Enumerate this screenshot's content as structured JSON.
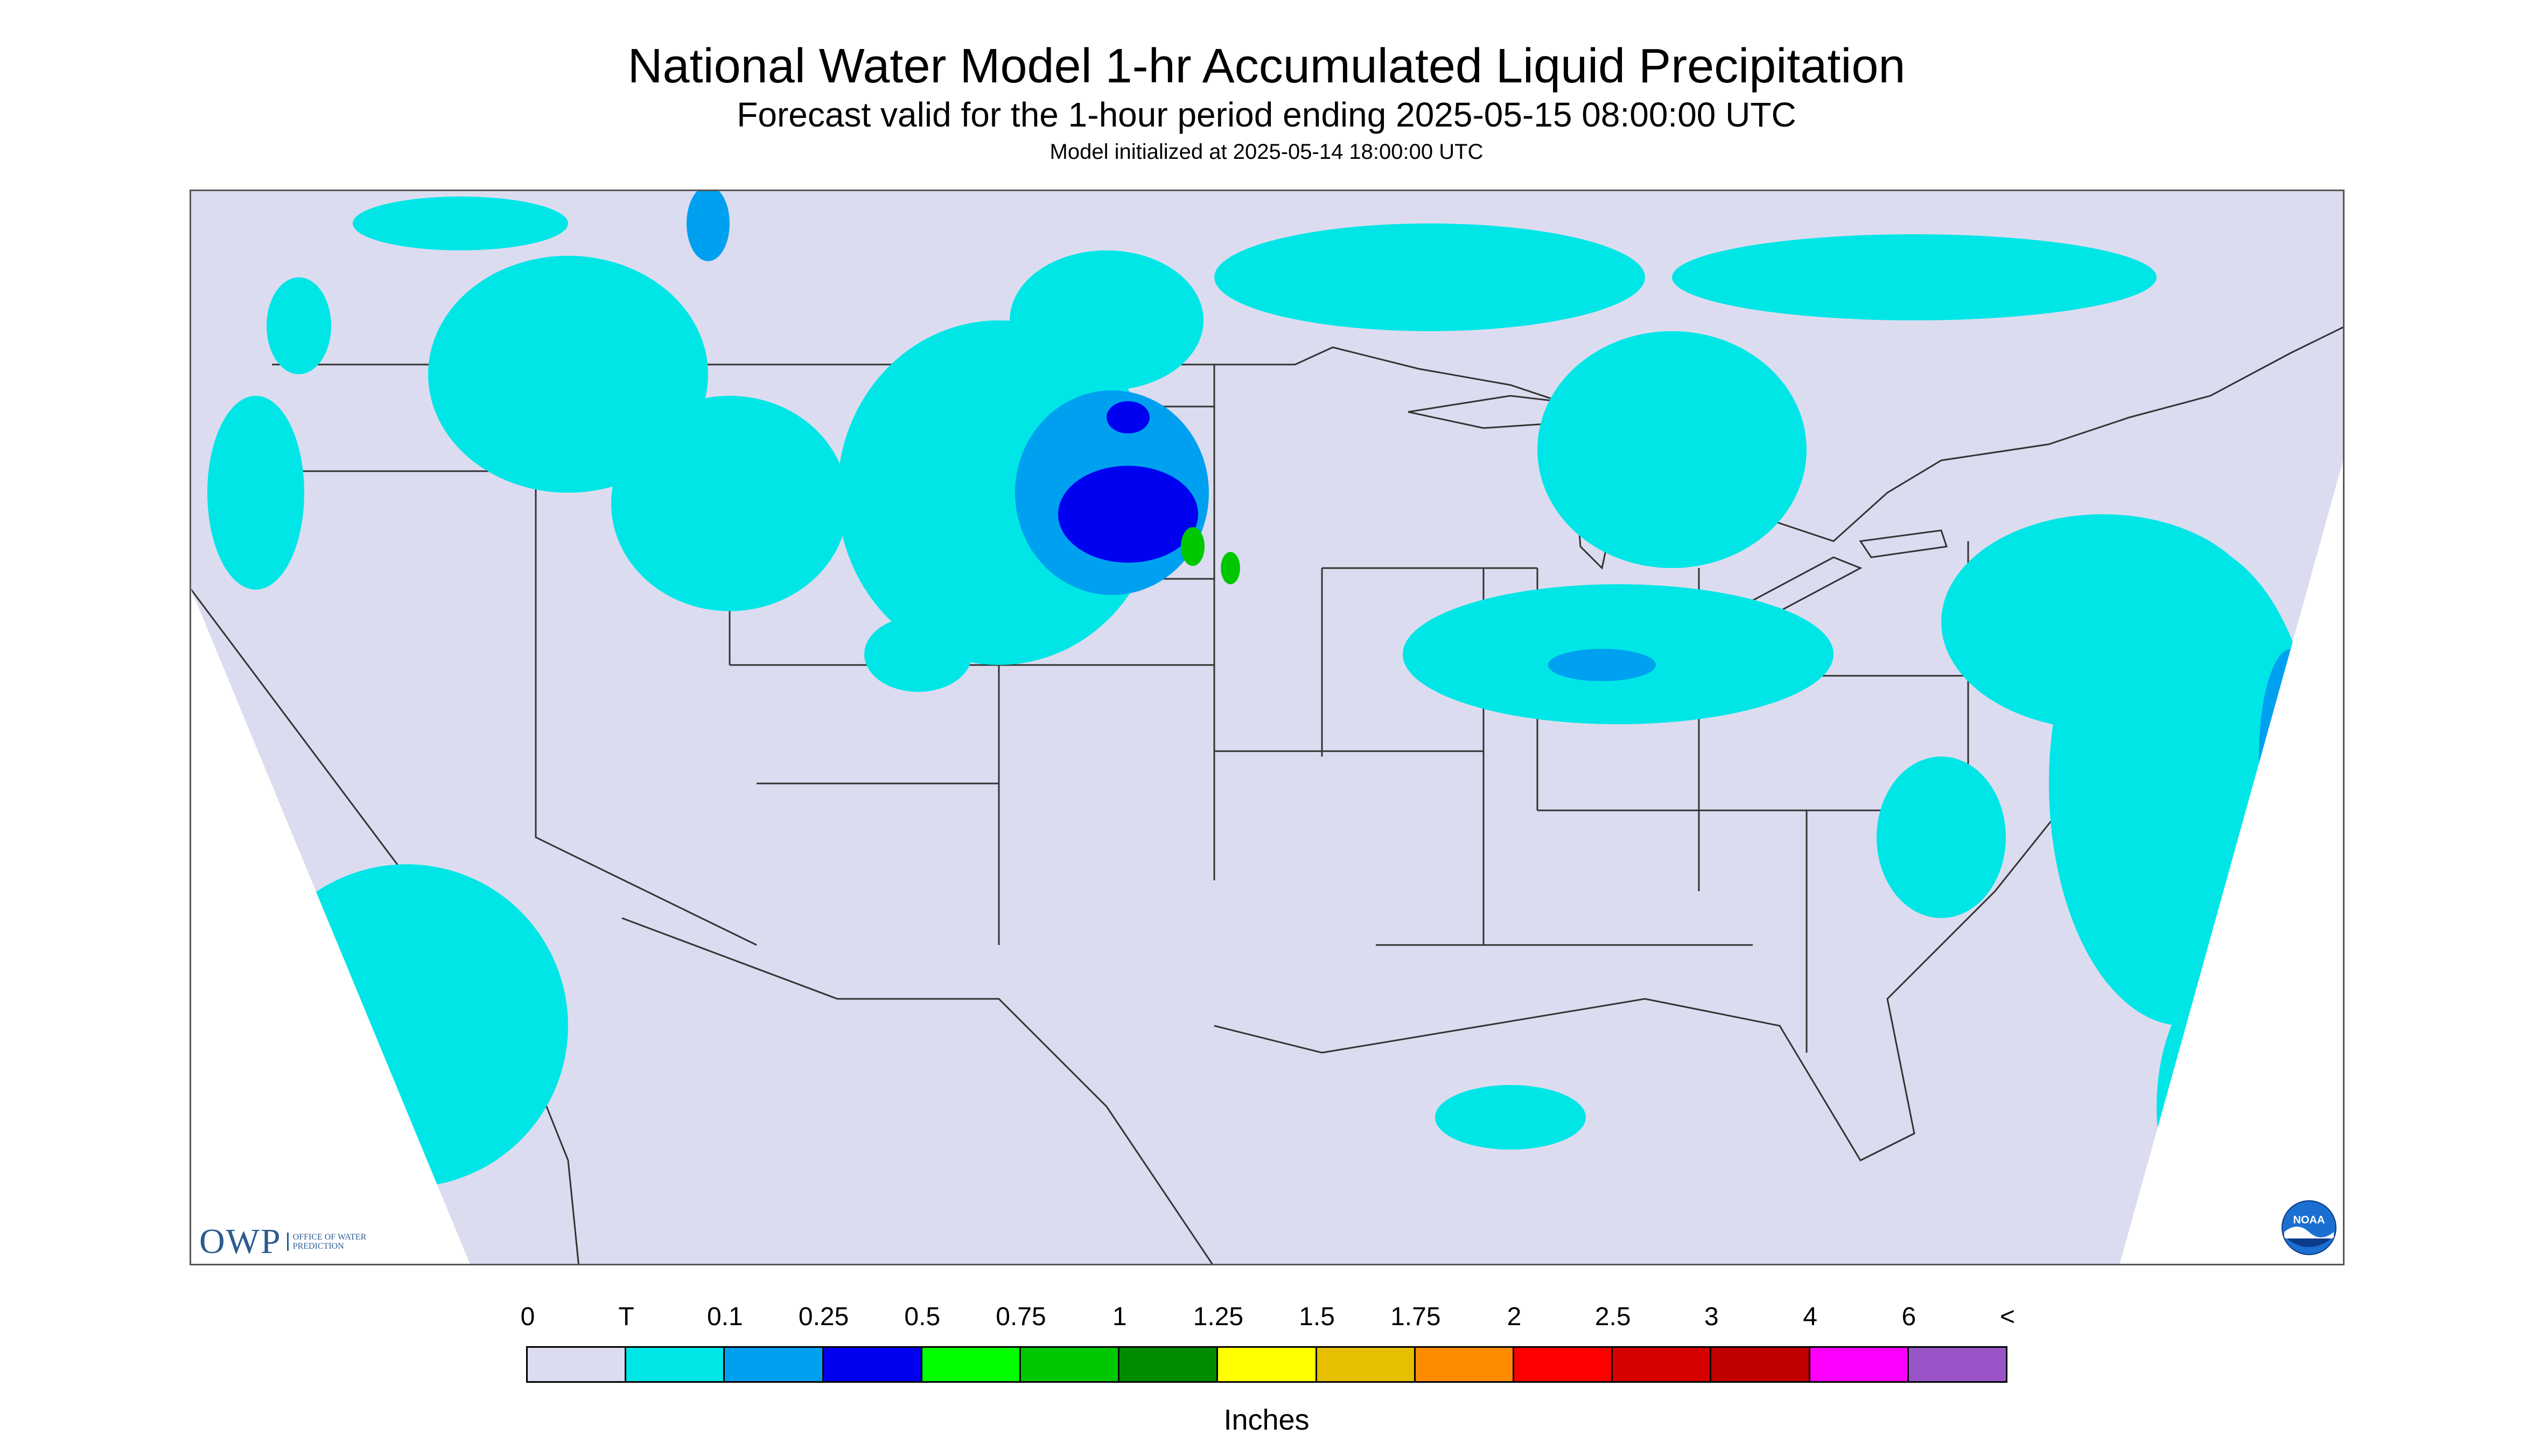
{
  "title": "National Water Model 1-hr Accumulated Liquid Precipitation",
  "subtitle": "Forecast valid for the 1-hour period ending 2025-05-15 08:00:00 UTC",
  "init_line": "Model initialized at 2025-05-14 18:00:00 UTC",
  "logo": {
    "owp_text": "OWP",
    "owp_subtitle": "OFFICE OF WATER PREDICTION",
    "noaa_text": "NOAA"
  },
  "legend": {
    "labels": [
      "0",
      "T",
      "0.1",
      "0.25",
      "0.5",
      "0.75",
      "1",
      "1.25",
      "1.5",
      "1.75",
      "2",
      "2.5",
      "3",
      "4",
      "6",
      "<"
    ],
    "colors": [
      "#dcdcf0",
      "#00e6e6",
      "#00a0f0",
      "#0000f0",
      "#00ff00",
      "#00c800",
      "#008c00",
      "#ffff00",
      "#e6bf00",
      "#ff8c00",
      "#ff0000",
      "#d60000",
      "#c00000",
      "#ff00ff",
      "#9955c8"
    ],
    "units": "Inches"
  },
  "colors": {
    "domain_fill": "#dcdcf0",
    "outside_fill": "#ffffff",
    "boundary": "#333333"
  }
}
